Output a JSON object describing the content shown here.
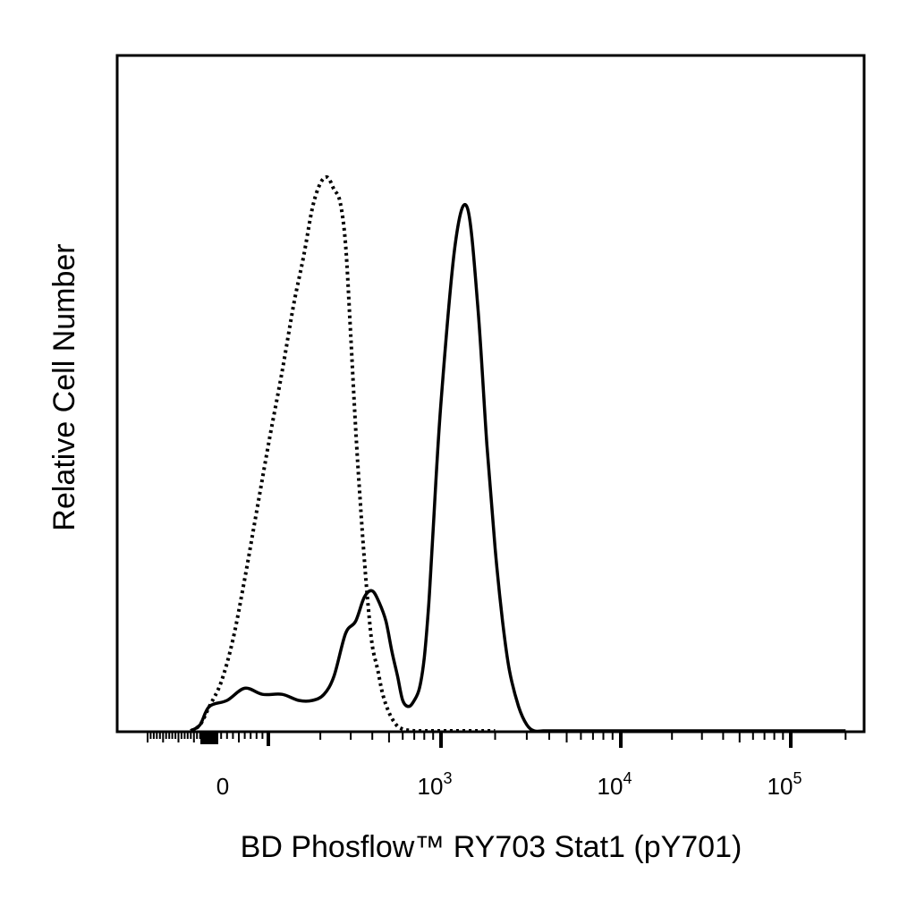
{
  "chart_data": {
    "type": "line",
    "xlabel": "BD Phosflow™ RY703 Stat1 (pY701)",
    "ylabel": "Relative Cell Number",
    "x_scale": "biexponential",
    "xlim": [
      -200,
      250000
    ],
    "ylim": [
      0,
      100
    ],
    "grid": false,
    "legend": "none",
    "tick_labels": [
      {
        "value": 0,
        "base": "0",
        "exp": ""
      },
      {
        "value": 1000,
        "base": "10",
        "exp": "3"
      },
      {
        "value": 10000,
        "base": "10",
        "exp": "4"
      },
      {
        "value": 100000,
        "base": "10",
        "exp": "5"
      }
    ],
    "series": [
      {
        "style": "dotted",
        "x": [
          -60,
          -30,
          0,
          20,
          40,
          60,
          80,
          100,
          120,
          140,
          160,
          180,
          200,
          220,
          240,
          260,
          280,
          300,
          320,
          340,
          360,
          380,
          400,
          430,
          460,
          500,
          550,
          600,
          700,
          800,
          1000,
          2000
        ],
        "y": [
          0,
          1,
          4,
          8,
          15,
          25,
          36,
          47,
          59,
          70,
          78,
          86,
          90,
          91,
          89,
          87,
          80,
          65,
          50,
          38,
          28,
          20,
          14,
          10,
          6,
          3,
          1,
          0.3,
          0,
          0,
          0,
          0
        ]
      },
      {
        "style": "solid",
        "x": [
          -60,
          -30,
          0,
          30,
          60,
          90,
          120,
          150,
          180,
          210,
          240,
          280,
          320,
          360,
          400,
          440,
          480,
          520,
          560,
          600,
          650,
          700,
          750,
          800,
          850,
          900,
          1000,
          1200,
          1400,
          1600,
          1800,
          2000,
          2200,
          2400,
          2700,
          3000,
          3300,
          3700,
          4000,
          5000,
          10000,
          100000,
          200000
        ],
        "y": [
          0,
          1,
          4,
          5,
          7,
          6,
          6,
          5,
          5,
          6,
          9,
          16,
          18,
          22,
          23,
          21,
          18,
          13,
          9,
          5,
          4,
          5,
          7,
          12,
          21,
          33,
          54,
          80,
          86,
          70,
          47,
          30,
          18,
          10,
          4,
          1,
          0,
          0,
          0,
          0,
          0,
          0,
          0
        ]
      }
    ]
  }
}
